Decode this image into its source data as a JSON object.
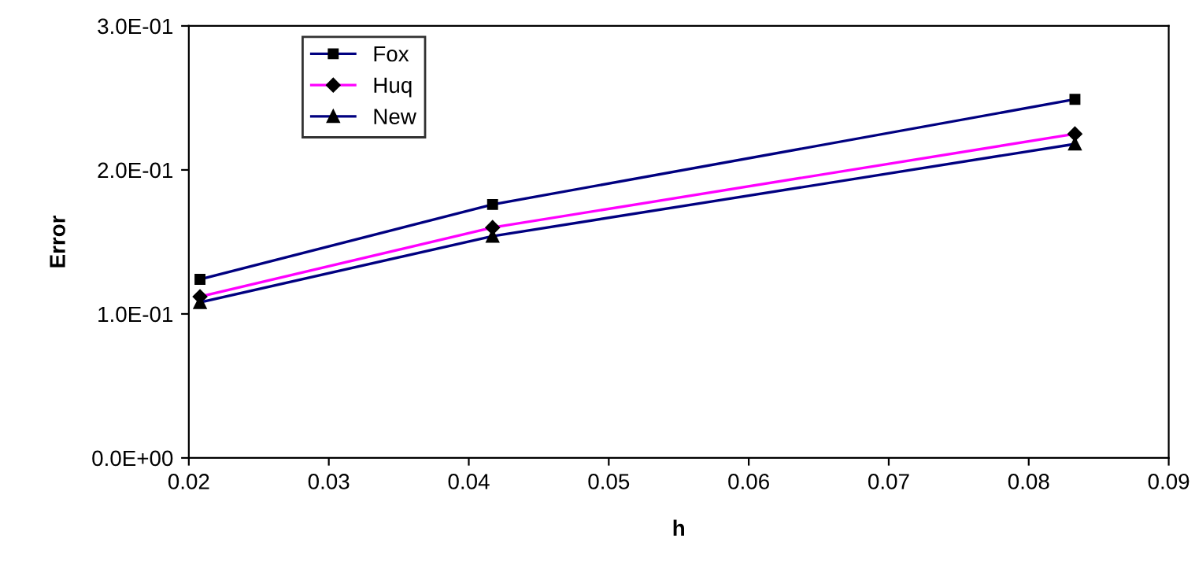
{
  "chart_data": {
    "type": "line",
    "xlabel": "h",
    "ylabel": "Error",
    "series": [
      {
        "name": "Fox",
        "color": "#000080",
        "marker": "square",
        "x": [
          0.0208,
          0.0417,
          0.0833
        ],
        "values": [
          0.124,
          0.176,
          0.249
        ]
      },
      {
        "name": "Huq",
        "color": "#ff00ff",
        "marker": "diamond",
        "x": [
          0.0208,
          0.0417,
          0.0833
        ],
        "values": [
          0.112,
          0.16,
          0.225
        ]
      },
      {
        "name": "New",
        "color": "#000080",
        "marker": "triangle",
        "x": [
          0.0208,
          0.0417,
          0.0833
        ],
        "values": [
          0.108,
          0.154,
          0.218
        ]
      }
    ],
    "xlim": [
      0.02,
      0.09
    ],
    "xticks": [
      0.02,
      0.03,
      0.04,
      0.05,
      0.06,
      0.07,
      0.08,
      0.09
    ],
    "ylim": [
      0,
      0.3
    ],
    "yticks": [
      {
        "value": 0,
        "label": "0.0E+00"
      },
      {
        "value": 0.1,
        "label": "1.0E-01"
      },
      {
        "value": 0.2,
        "label": "2.0E-01"
      },
      {
        "value": 0.3,
        "label": "3.0E-01"
      }
    ],
    "grid": false,
    "legend": "top left",
    "line_style": "solid"
  }
}
